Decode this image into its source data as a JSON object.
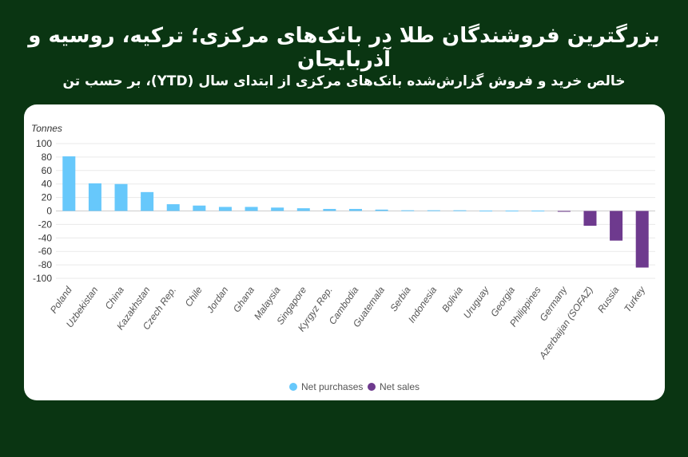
{
  "header": {
    "title": "بزرگترین فروشندگان طلا در بانک‌های مرکزی؛ ترکیه، روسیه و آذربایجان",
    "subtitle": "خالص خرید و فروش گزارش‌شده بانک‌های مرکزی از ابتدای سال (YTD)، بر حسب تن"
  },
  "colors": {
    "background": "#0a3512",
    "purchases": "#67c8fb",
    "sales": "#6e3a8e"
  },
  "chart_data": {
    "type": "bar",
    "ylabel": "Tonnes",
    "ylim": [
      -100,
      100
    ],
    "yticks": [
      100,
      80,
      60,
      40,
      20,
      0,
      -20,
      -40,
      -60,
      -80,
      -100
    ],
    "categories": [
      "Poland",
      "Uzbekistan",
      "China",
      "Kazakhstan",
      "Czech Rep.",
      "Chile",
      "Jordan",
      "Ghana",
      "Malaysia",
      "Singapore",
      "Kyrgyz Rep.",
      "Cambodia",
      "Guatemala",
      "Serbia",
      "Indonesia",
      "Bolivia",
      "Uruguay",
      "Georgia",
      "Philippines",
      "Germany",
      "Azerbaijan (SOFAZ)",
      "Russia",
      "Turkey"
    ],
    "series": [
      {
        "name": "Net purchases",
        "values": [
          81,
          41,
          40,
          28,
          10,
          8,
          6,
          6,
          5,
          4,
          3,
          3,
          2,
          1,
          1,
          1,
          0.5,
          0.5,
          0.5,
          null,
          null,
          null,
          null
        ]
      },
      {
        "name": "Net sales",
        "values": [
          null,
          null,
          null,
          null,
          null,
          null,
          null,
          null,
          null,
          null,
          null,
          null,
          null,
          null,
          null,
          null,
          null,
          null,
          null,
          -1,
          -22,
          -44,
          -84
        ]
      }
    ],
    "legend": {
      "position": "bottom",
      "items": [
        "Net purchases",
        "Net sales"
      ]
    },
    "grid": true
  }
}
